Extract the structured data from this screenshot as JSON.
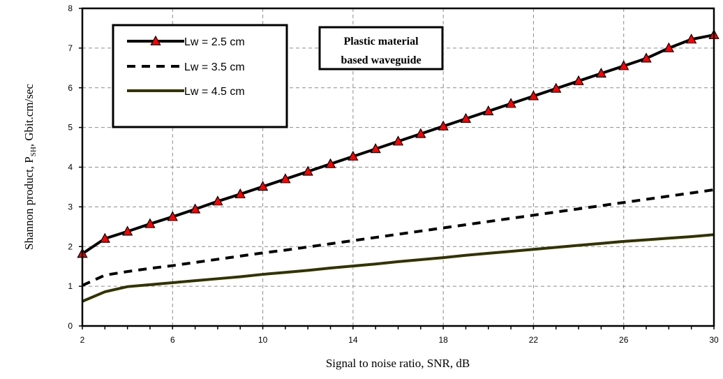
{
  "chart_data": {
    "type": "line",
    "xlabel": "Signal to noise ratio, SNR, dB",
    "ylabel": {
      "prefix": "Shannon product, P",
      "subscript": "SH",
      "suffix": ", Gbit.cm/sec"
    },
    "xlim": [
      2,
      30
    ],
    "ylim": [
      0,
      8
    ],
    "xticks": [
      2,
      6,
      10,
      14,
      18,
      22,
      26,
      30
    ],
    "yticks": [
      0,
      1,
      2,
      3,
      4,
      5,
      6,
      7,
      8
    ],
    "grid": true,
    "legend_position": "top-left",
    "annotation": [
      "Plastic material",
      "based waveguide"
    ],
    "series": [
      {
        "name": "Lw = 2.5 cm",
        "style": "solid-with-triangle-markers",
        "color": "#000000",
        "marker_color": "#ff0000",
        "x": [
          2,
          3,
          4,
          5,
          6,
          7,
          8,
          9,
          10,
          11,
          12,
          13,
          14,
          15,
          16,
          17,
          18,
          19,
          20,
          21,
          22,
          23,
          24,
          25,
          26,
          27,
          28,
          29,
          30
        ],
        "values": [
          1.82,
          2.2,
          2.38,
          2.57,
          2.75,
          2.94,
          3.14,
          3.32,
          3.51,
          3.7,
          3.89,
          4.08,
          4.27,
          4.46,
          4.65,
          4.84,
          5.03,
          5.22,
          5.41,
          5.6,
          5.79,
          5.98,
          6.17,
          6.36,
          6.55,
          6.74,
          7.0,
          7.22,
          7.33
        ]
      },
      {
        "name": "Lw = 3.5 cm",
        "style": "dashed",
        "color": "#000000",
        "x": [
          2,
          3,
          4,
          5,
          6,
          7,
          8,
          9,
          10,
          11,
          12,
          13,
          14,
          15,
          16,
          17,
          18,
          19,
          20,
          21,
          22,
          23,
          24,
          25,
          26,
          27,
          28,
          29,
          30
        ],
        "values": [
          1.02,
          1.28,
          1.37,
          1.45,
          1.52,
          1.6,
          1.68,
          1.76,
          1.84,
          1.91,
          1.99,
          2.07,
          2.15,
          2.23,
          2.31,
          2.39,
          2.47,
          2.55,
          2.63,
          2.71,
          2.79,
          2.87,
          2.95,
          3.03,
          3.11,
          3.19,
          3.27,
          3.35,
          3.43
        ]
      },
      {
        "name": "Lw = 4.5 cm",
        "style": "solid",
        "color": "#333300",
        "x": [
          2,
          3,
          4,
          5,
          6,
          7,
          8,
          9,
          10,
          11,
          12,
          13,
          14,
          15,
          16,
          17,
          18,
          19,
          20,
          21,
          22,
          23,
          24,
          25,
          26,
          27,
          28,
          29,
          30
        ],
        "values": [
          0.62,
          0.86,
          0.99,
          1.04,
          1.09,
          1.14,
          1.19,
          1.24,
          1.3,
          1.35,
          1.4,
          1.46,
          1.51,
          1.56,
          1.62,
          1.67,
          1.72,
          1.78,
          1.83,
          1.88,
          1.93,
          1.98,
          2.03,
          2.08,
          2.13,
          2.17,
          2.21,
          2.25,
          2.3
        ]
      }
    ]
  }
}
